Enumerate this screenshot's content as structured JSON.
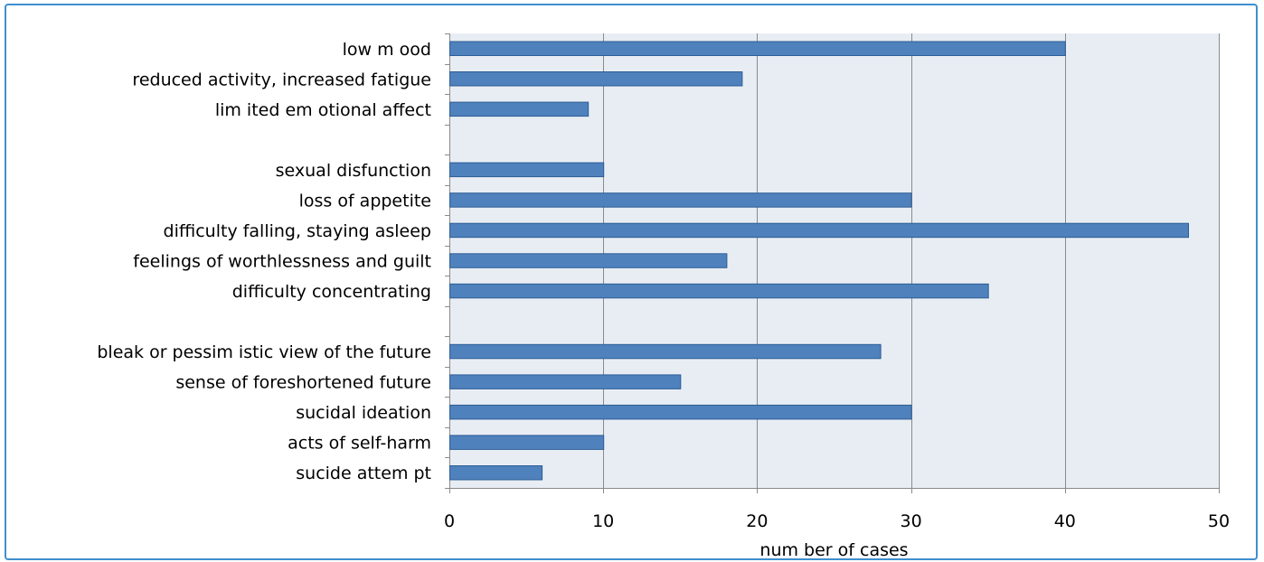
{
  "chart_data": {
    "type": "bar",
    "orientation": "horizontal",
    "categories": [
      "low m ood",
      "reduced activity, increased fatigue",
      "lim ited em otional affect",
      "",
      "sexual disfunction",
      "loss of appetite",
      "difficulty falling, staying asleep",
      "feelings of worthlessness and guilt",
      "difficulty concentrating",
      "",
      "bleak or pessim istic view of the future",
      "sense of foreshortened future",
      "sucidal ideation",
      "acts of self-harm",
      "sucide attem pt"
    ],
    "values": [
      40,
      19,
      9,
      null,
      10,
      30,
      48,
      18,
      35,
      null,
      28,
      15,
      30,
      10,
      6
    ],
    "xlabel": "num ber of cases",
    "ylabel": "",
    "title": "",
    "xlim": [
      0,
      50
    ],
    "xticks": [
      0,
      10,
      20,
      30,
      40,
      50
    ],
    "grid": "vertical",
    "legend": "none",
    "colors": {
      "bar": "#4f81bd",
      "bar_edge": "#2c5d94",
      "plot_bg": "#e8edf4",
      "grid": "#8a8a8a",
      "frame": "#3f8fd0"
    }
  }
}
